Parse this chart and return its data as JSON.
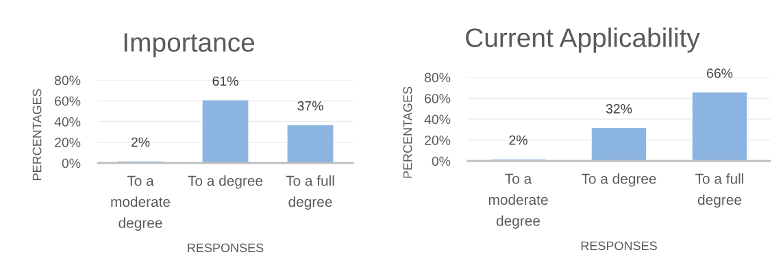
{
  "chart_data": [
    {
      "type": "bar",
      "title": "Importance",
      "xlabel": "RESPONSES",
      "ylabel": "PERCENTAGES",
      "categories": [
        "To a\nmoderate\ndegree",
        "To a degree",
        "To a full\ndegree"
      ],
      "values": [
        2,
        61,
        37
      ],
      "value_labels": [
        "2%",
        "61%",
        "37%"
      ],
      "color": "#8bb5e0",
      "ylim": [
        0,
        80
      ],
      "yticks": [
        {
          "value": 0,
          "label": "0%"
        },
        {
          "value": 20,
          "label": "20%"
        },
        {
          "value": 40,
          "label": "40%"
        },
        {
          "value": 60,
          "label": "60%"
        },
        {
          "value": 80,
          "label": "80%"
        }
      ],
      "grid": "y"
    },
    {
      "type": "bar",
      "title": "Current Applicability",
      "xlabel": "RESPONSES",
      "ylabel": "PERCENTAGES",
      "categories": [
        "To a\nmoderate\ndegree",
        "To a degree",
        "To a full\ndegree"
      ],
      "values": [
        2,
        32,
        66
      ],
      "value_labels": [
        "2%",
        "32%",
        "66%"
      ],
      "color": "#8bb5e0",
      "ylim": [
        0,
        80
      ],
      "yticks": [
        {
          "value": 0,
          "label": "0%"
        },
        {
          "value": 20,
          "label": "20%"
        },
        {
          "value": 40,
          "label": "40%"
        },
        {
          "value": 60,
          "label": "60%"
        },
        {
          "value": 80,
          "label": "80%"
        }
      ],
      "grid": "y"
    }
  ]
}
